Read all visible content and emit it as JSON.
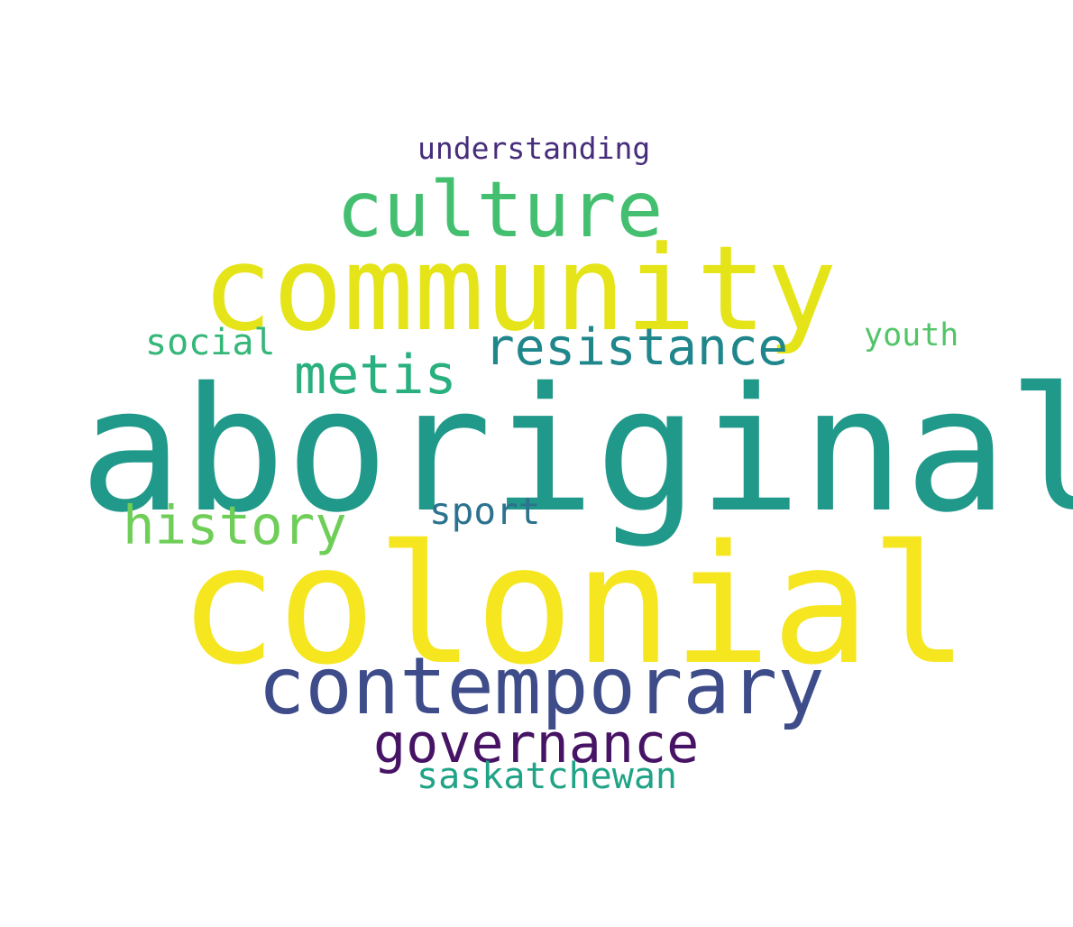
{
  "words": {
    "understanding": {
      "text": "understanding",
      "color": "#472d7b"
    },
    "culture": {
      "text": "culture",
      "color": "#44bf70"
    },
    "community": {
      "text": "community",
      "color": "#e5e419"
    },
    "social": {
      "text": "social",
      "color": "#35b779"
    },
    "youth": {
      "text": "youth",
      "color": "#52c569"
    },
    "resistance": {
      "text": "resistance",
      "color": "#1f868b"
    },
    "metis": {
      "text": "metis",
      "color": "#2ab07f"
    },
    "aboriginal": {
      "text": "aboriginal",
      "color": "#21998a"
    },
    "history": {
      "text": "history",
      "color": "#6ece58"
    },
    "sport": {
      "text": "sport",
      "color": "#2c728e"
    },
    "colonial": {
      "text": "colonial",
      "color": "#f5e61f"
    },
    "contemporary": {
      "text": "contemporary",
      "color": "#3e4c8a"
    },
    "governance": {
      "text": "governance",
      "color": "#471365"
    },
    "saskatchewan": {
      "text": "saskatchewan",
      "color": "#20a386"
    }
  }
}
